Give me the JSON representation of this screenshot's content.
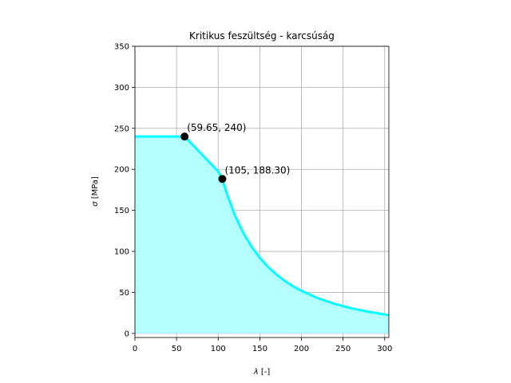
{
  "chart_data": {
    "type": "line",
    "title": "Kritikus feszültség - karcsúság",
    "xlabel_symbol": "λ",
    "xlabel_unit": " [-]",
    "ylabel_symbol": "σ",
    "ylabel_unit": " [MPa]",
    "xlim": [
      0,
      305
    ],
    "ylim": [
      -5,
      350
    ],
    "xticks": [
      0,
      50,
      100,
      150,
      200,
      250,
      300
    ],
    "yticks": [
      0,
      50,
      100,
      150,
      200,
      250,
      300,
      350
    ],
    "grid": true,
    "fill_under_curve": true,
    "series": [
      {
        "x": [
          0,
          59.65,
          70,
          80,
          90,
          100,
          105,
          110,
          120,
          130,
          140,
          150,
          160,
          170,
          180,
          190,
          200,
          220,
          240,
          260,
          280,
          305
        ],
        "y": [
          240,
          240,
          229.2,
          218.6,
          208.0,
          197.5,
          188.3,
          171.5,
          144.1,
          122.8,
          105.9,
          92.2,
          81.0,
          71.8,
          64.0,
          57.5,
          51.9,
          42.9,
          36.0,
          30.7,
          26.5,
          22.3
        ]
      }
    ],
    "points": [
      {
        "x": 59.65,
        "y": 240,
        "label": "(59.65, 240)"
      },
      {
        "x": 105,
        "y": 188.3,
        "label": "(105, 188.30)"
      }
    ],
    "colors": {
      "line": "#00ffff",
      "fill": "#b3ffff",
      "marker": "#000000",
      "grid": "#b0b0b0"
    }
  }
}
